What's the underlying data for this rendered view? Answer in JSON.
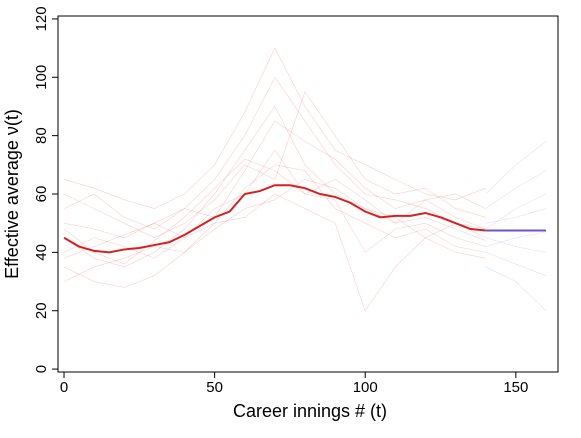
{
  "chart_data": {
    "type": "line",
    "xlabel": "Career innings # (t)",
    "ylabel": "Effective average ν(t)",
    "xlim": [
      -2,
      164
    ],
    "ylim": [
      -1,
      121
    ],
    "xticks": [
      0,
      50,
      100,
      150
    ],
    "yticks": [
      0,
      20,
      40,
      60,
      80,
      100,
      120
    ],
    "series": [
      {
        "color": "#f0707055",
        "width": 0.6,
        "x": [
          0,
          10,
          20,
          30,
          40,
          50,
          60,
          70,
          80,
          90,
          100,
          110,
          120,
          130,
          140
        ],
        "values": [
          45,
          38,
          35,
          40,
          48,
          60,
          75,
          90,
          70,
          60,
          55,
          50,
          58,
          52,
          48
        ]
      },
      {
        "color": "#f0707055",
        "width": 0.6,
        "x": [
          0,
          10,
          20,
          30,
          40,
          50,
          60,
          70,
          80,
          90,
          100,
          110,
          120,
          130,
          140
        ],
        "values": [
          55,
          60,
          52,
          48,
          55,
          65,
          80,
          100,
          85,
          70,
          60,
          58,
          55,
          50,
          45
        ]
      },
      {
        "color": "#f0707055",
        "width": 0.6,
        "x": [
          0,
          10,
          20,
          30,
          40,
          50,
          60,
          70,
          80,
          90,
          100,
          110,
          120,
          130,
          140
        ],
        "values": [
          35,
          30,
          28,
          32,
          40,
          50,
          62,
          70,
          68,
          55,
          50,
          45,
          48,
          42,
          40
        ]
      },
      {
        "color": "#f0707055",
        "width": 0.6,
        "x": [
          0,
          10,
          20,
          30,
          40,
          50,
          60,
          70,
          80,
          90,
          100,
          110,
          120,
          130,
          140
        ],
        "values": [
          60,
          55,
          50,
          45,
          50,
          58,
          70,
          65,
          95,
          80,
          65,
          60,
          62,
          55,
          52
        ]
      },
      {
        "color": "#f0707055",
        "width": 0.6,
        "x": [
          0,
          10,
          20,
          30,
          40,
          50,
          60,
          70,
          80,
          90,
          100,
          110,
          120,
          130,
          140
        ],
        "values": [
          40,
          45,
          42,
          38,
          45,
          55,
          60,
          75,
          60,
          58,
          40,
          48,
          50,
          45,
          42
        ]
      },
      {
        "color": "#f0707055",
        "width": 0.6,
        "x": [
          0,
          10,
          20,
          30,
          40,
          50,
          60,
          70,
          80,
          90,
          100,
          110,
          120,
          130,
          140
        ],
        "values": [
          30,
          35,
          38,
          42,
          40,
          48,
          55,
          58,
          65,
          62,
          55,
          52,
          45,
          40,
          38
        ]
      },
      {
        "color": "#f0707055",
        "width": 0.6,
        "x": [
          0,
          10,
          20,
          30,
          40,
          50,
          60,
          70,
          80,
          90,
          100,
          110,
          120,
          130,
          140
        ],
        "values": [
          50,
          48,
          45,
          50,
          55,
          52,
          68,
          85,
          78,
          72,
          62,
          55,
          58,
          60,
          55
        ]
      },
      {
        "color": "#f0707055",
        "width": 0.6,
        "x": [
          0,
          10,
          20,
          30,
          40,
          50,
          60,
          70,
          80,
          90,
          100,
          110,
          120,
          130,
          140
        ],
        "values": [
          65,
          62,
          58,
          55,
          60,
          70,
          88,
          110,
          90,
          75,
          70,
          65,
          60,
          58,
          62
        ]
      },
      {
        "color": "#f0707055",
        "width": 0.6,
        "x": [
          0,
          10,
          20,
          30,
          40,
          50,
          60,
          70,
          80,
          90,
          100,
          110,
          120,
          130,
          140
        ],
        "values": [
          38,
          42,
          46,
          50,
          45,
          50,
          52,
          60,
          55,
          50,
          20,
          35,
          45,
          50,
          48
        ]
      },
      {
        "color": "#f0707055",
        "width": 0.6,
        "x": [
          0,
          10,
          20,
          30,
          40,
          50,
          60,
          70,
          80,
          90,
          100,
          110,
          120,
          130,
          140
        ],
        "values": [
          48,
          40,
          36,
          44,
          52,
          62,
          72,
          68,
          60,
          65,
          58,
          50,
          52,
          48,
          44
        ]
      },
      {
        "color": "#9090e044",
        "width": 0.6,
        "x": [
          140,
          150,
          160
        ],
        "values": [
          48,
          55,
          60
        ]
      },
      {
        "color": "#9090e044",
        "width": 0.6,
        "x": [
          140,
          150,
          160
        ],
        "values": [
          40,
          36,
          32
        ]
      },
      {
        "color": "#9090e044",
        "width": 0.6,
        "x": [
          140,
          150,
          160
        ],
        "values": [
          55,
          62,
          68
        ]
      },
      {
        "color": "#9090e044",
        "width": 0.6,
        "x": [
          140,
          150,
          160
        ],
        "values": [
          45,
          42,
          40
        ]
      },
      {
        "color": "#9090e044",
        "width": 0.6,
        "x": [
          140,
          150,
          160
        ],
        "values": [
          35,
          30,
          20
        ]
      },
      {
        "color": "#9090e044",
        "width": 0.6,
        "x": [
          140,
          150,
          160
        ],
        "values": [
          60,
          70,
          78
        ]
      },
      {
        "color": "#9090e044",
        "width": 0.6,
        "x": [
          140,
          150,
          160
        ],
        "values": [
          50,
          52,
          55
        ]
      },
      {
        "color": "#9090e044",
        "width": 0.6,
        "x": [
          140,
          150,
          160
        ],
        "values": [
          42,
          45,
          47
        ]
      },
      {
        "color": "#d62020",
        "width": 2,
        "x": [
          0,
          5,
          10,
          15,
          20,
          25,
          30,
          35,
          40,
          45,
          50,
          55,
          60,
          65,
          70,
          75,
          80,
          85,
          90,
          95,
          100,
          105,
          110,
          115,
          120,
          125,
          130,
          135,
          140
        ],
        "values": [
          45,
          42,
          40.5,
          40,
          41,
          41.5,
          42.5,
          43.5,
          46,
          49,
          52,
          54,
          60,
          61,
          63,
          63,
          62,
          60,
          59,
          57,
          54,
          52,
          52.5,
          52.5,
          53.5,
          52,
          50,
          48,
          47.5
        ]
      },
      {
        "color": "#7050c8",
        "width": 2,
        "x": [
          140,
          160
        ],
        "values": [
          47.5,
          47.5
        ]
      }
    ]
  }
}
